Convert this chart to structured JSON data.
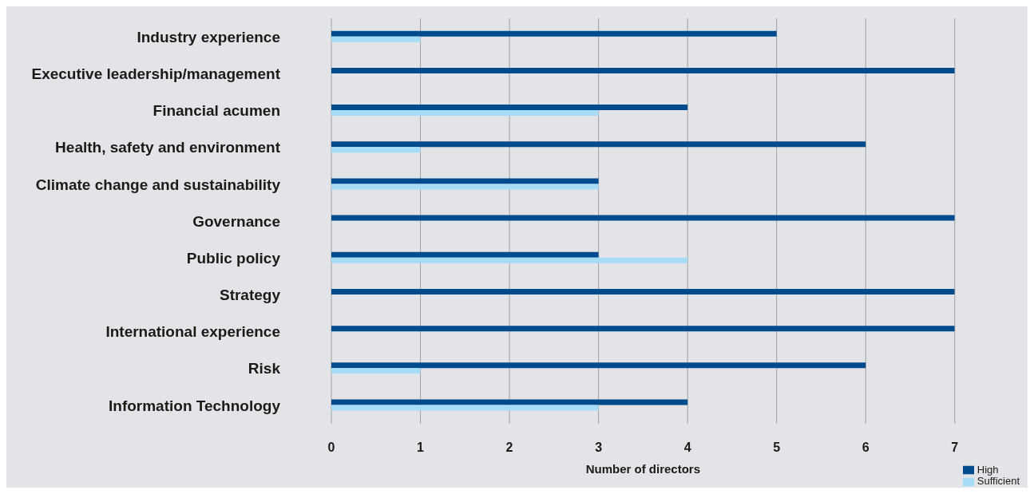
{
  "chart_data": {
    "type": "bar",
    "orientation": "horizontal",
    "xlabel": "Number of directors",
    "categories": [
      "Industry experience",
      "Executive leadership/management",
      "Financial acumen",
      "Health, safety and environment",
      "Climate change and sustainability",
      "Governance",
      "Public policy",
      "Strategy",
      "International experience",
      "Risk",
      "Information Technology"
    ],
    "series": [
      {
        "name": "High",
        "color": "#004b8d",
        "values": [
          5,
          7,
          4,
          6,
          3,
          7,
          3,
          7,
          7,
          6,
          4
        ]
      },
      {
        "name": "Sufficient",
        "color": "#a6dcf5",
        "values": [
          1,
          0,
          3,
          1,
          3,
          0,
          4,
          0,
          0,
          1,
          3
        ]
      }
    ],
    "xlim": [
      0,
      7
    ],
    "xticks": [
      0,
      1,
      2,
      3,
      4,
      5,
      6,
      7
    ],
    "grid": "x",
    "legend": "bottom right"
  }
}
